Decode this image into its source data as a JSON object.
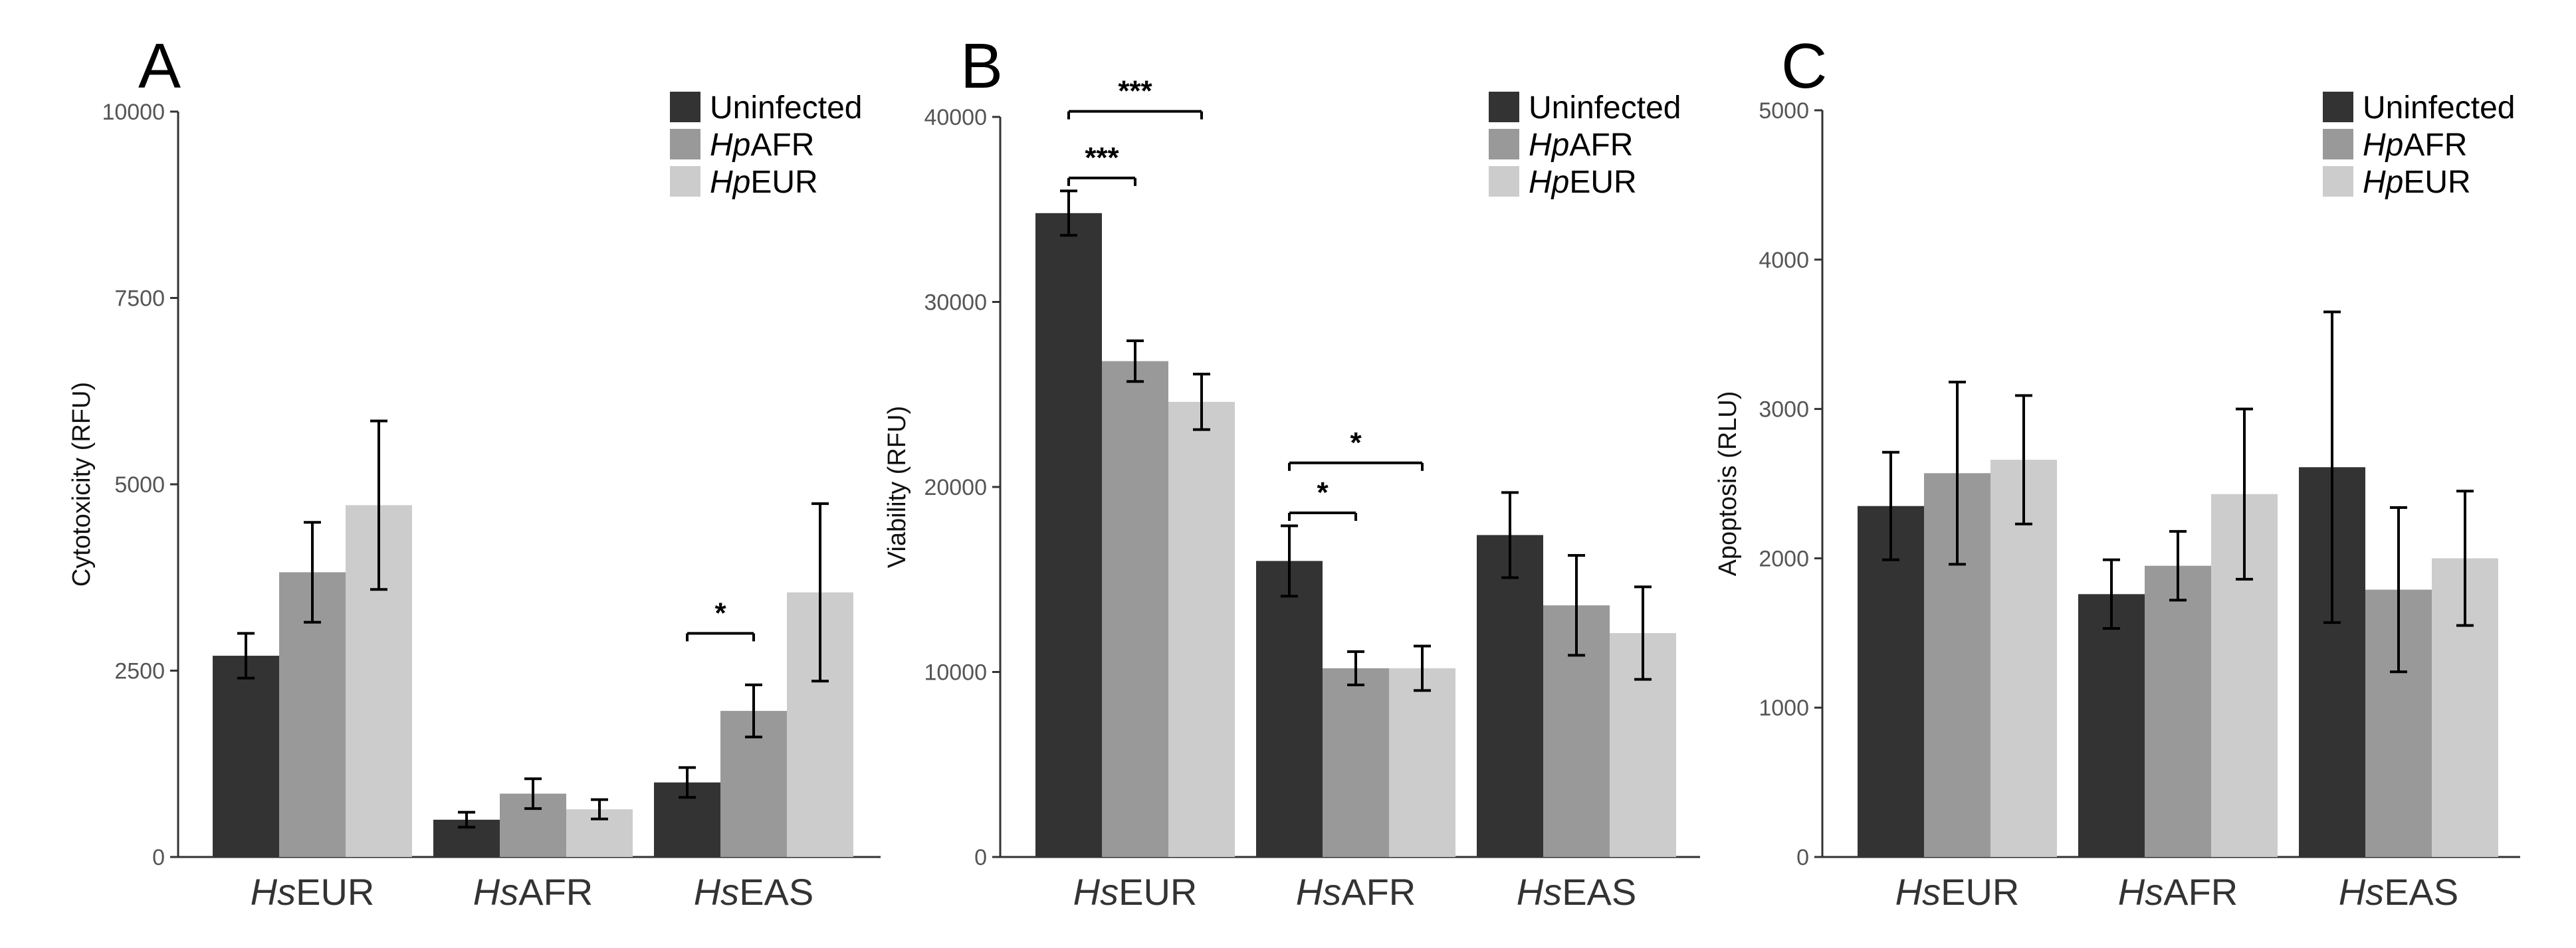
{
  "figure": {
    "legend": {
      "entries": [
        {
          "prefix": "",
          "suffix": "Uninfected",
          "color": "#333333"
        },
        {
          "prefix": "Hp",
          "suffix": "AFR",
          "color": "#999999"
        },
        {
          "prefix": "Hp",
          "suffix": "EUR",
          "color": "#cccccc"
        }
      ]
    }
  },
  "chart_data": [
    {
      "type": "bar",
      "panel": "A",
      "title": "",
      "xlabel": "",
      "ylabel": "Cytotoxicity (RFU)",
      "ylim": [
        0,
        10000
      ],
      "yticks": [
        0,
        2500,
        5000,
        7500,
        10000
      ],
      "categories": [
        {
          "prefix": "Hs",
          "suffix": "EUR"
        },
        {
          "prefix": "Hs",
          "suffix": "AFR"
        },
        {
          "prefix": "Hs",
          "suffix": "EAS"
        }
      ],
      "series": [
        {
          "name": "Uninfected",
          "values": [
            2700,
            500,
            1000
          ],
          "errors": [
            300,
            100,
            200
          ]
        },
        {
          "name": "HpAFR",
          "values": [
            3820,
            850,
            1960
          ],
          "errors": [
            670,
            200,
            350
          ]
        },
        {
          "name": "HpEUR",
          "values": [
            4720,
            640,
            3550
          ],
          "errors": [
            1130,
            130,
            1190
          ]
        }
      ],
      "significance": [
        {
          "category": 2,
          "from_series": 0,
          "to_series": 1,
          "y": 3000,
          "label": "*"
        }
      ]
    },
    {
      "type": "bar",
      "panel": "B",
      "title": "",
      "xlabel": "",
      "ylabel": "Viability (RFU)",
      "ylim": [
        0,
        40000
      ],
      "yticks": [
        0,
        10000,
        20000,
        30000,
        40000
      ],
      "categories": [
        {
          "prefix": "Hs",
          "suffix": "EUR"
        },
        {
          "prefix": "Hs",
          "suffix": "AFR"
        },
        {
          "prefix": "Hs",
          "suffix": "EAS"
        }
      ],
      "series": [
        {
          "name": "Uninfected",
          "values": [
            34800,
            16000,
            17400
          ],
          "errors": [
            1200,
            1900,
            2300
          ]
        },
        {
          "name": "HpAFR",
          "values": [
            26800,
            10200,
            13600
          ],
          "errors": [
            1100,
            900,
            2700
          ]
        },
        {
          "name": "HpEUR",
          "values": [
            24600,
            10200,
            12100
          ],
          "errors": [
            1500,
            1200,
            2500
          ]
        }
      ],
      "significance": [
        {
          "category": 0,
          "from_series": 0,
          "to_series": 1,
          "y": 36700,
          "label": "***"
        },
        {
          "category": 0,
          "from_series": 0,
          "to_series": 2,
          "y": 40300,
          "label": "***"
        },
        {
          "category": 1,
          "from_series": 0,
          "to_series": 1,
          "y": 18600,
          "label": "*"
        },
        {
          "category": 1,
          "from_series": 0,
          "to_series": 2,
          "y": 21300,
          "label": "*"
        }
      ]
    },
    {
      "type": "bar",
      "panel": "C",
      "title": "",
      "xlabel": "",
      "ylabel": "Apoptosis (RLU)",
      "ylim": [
        0,
        5000
      ],
      "yticks": [
        0,
        1000,
        2000,
        3000,
        4000,
        5000
      ],
      "categories": [
        {
          "prefix": "Hs",
          "suffix": "EUR"
        },
        {
          "prefix": "Hs",
          "suffix": "AFR"
        },
        {
          "prefix": "Hs",
          "suffix": "EAS"
        }
      ],
      "series": [
        {
          "name": "Uninfected",
          "values": [
            2350,
            1760,
            2610
          ],
          "errors": [
            360,
            230,
            1040
          ]
        },
        {
          "name": "HpAFR",
          "values": [
            2570,
            1950,
            1790
          ],
          "errors": [
            610,
            230,
            550
          ]
        },
        {
          "name": "HpEUR",
          "values": [
            2660,
            2430,
            2000
          ],
          "errors": [
            430,
            570,
            450
          ]
        }
      ],
      "significance": []
    }
  ]
}
